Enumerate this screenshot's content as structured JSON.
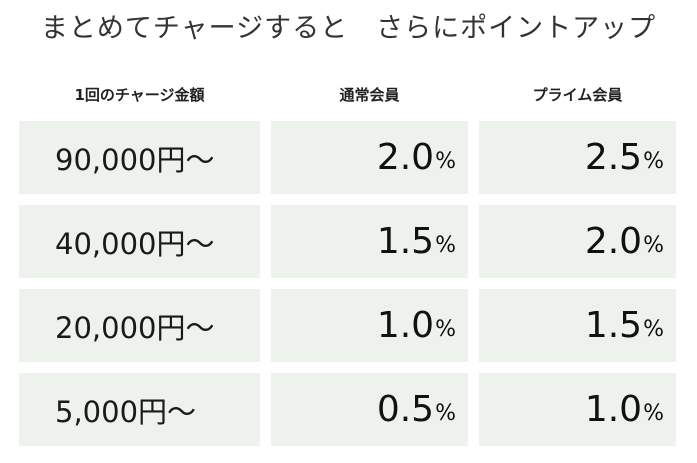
{
  "title": "まとめてチャージすると　さらにポイントアップ",
  "headers": {
    "charge_amount": "1回のチャージ金額",
    "regular_member": "通常会員",
    "prime_member": "プライム会員"
  },
  "percent_sign": "%",
  "rows": [
    {
      "amount": "90,000円〜",
      "regular": "2.0",
      "prime": "2.5"
    },
    {
      "amount": "40,000円〜",
      "regular": "1.5",
      "prime": "2.0"
    },
    {
      "amount": "20,000円〜",
      "regular": "1.0",
      "prime": "1.5"
    },
    {
      "amount": "5,000円〜",
      "regular": "0.5",
      "prime": "1.0"
    }
  ],
  "colors": {
    "cell_background": "#eef2ec",
    "text": "#222222"
  }
}
